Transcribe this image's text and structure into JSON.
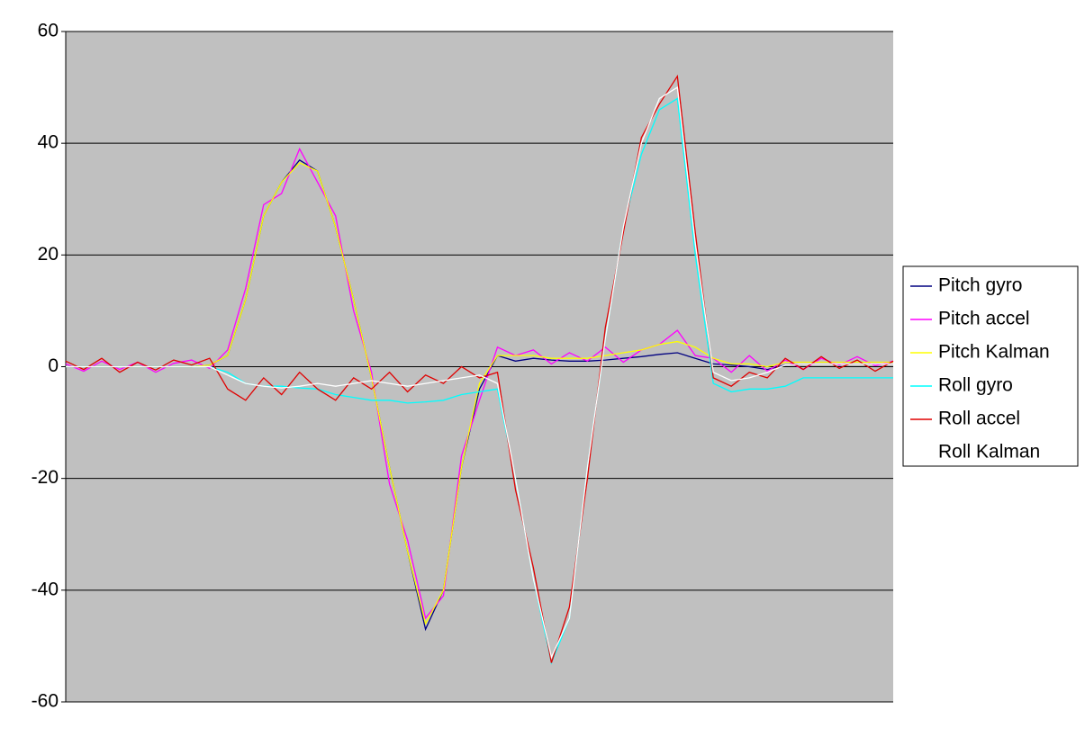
{
  "chart_data": {
    "type": "line",
    "ylim": [
      -60,
      60
    ],
    "yticks": [
      60,
      40,
      20,
      0,
      -20,
      -40,
      -60
    ],
    "grid": true,
    "legend": "right",
    "plot_background": "#c0c0c0",
    "series": [
      {
        "name": "Pitch gyro",
        "color": "#000080",
        "values": [
          0,
          0,
          0,
          0,
          0,
          0,
          0,
          0,
          0.3,
          2,
          12,
          27,
          33,
          37,
          35,
          25,
          12,
          -2,
          -18,
          -33,
          -47,
          -40,
          -18,
          -4,
          2,
          1,
          1.5,
          1.2,
          1,
          1,
          1.2,
          1.5,
          1.8,
          2.2,
          2.5,
          1.5,
          0.5,
          0.3,
          0,
          -0.5,
          0.3,
          0.5,
          0.5,
          0.5,
          0.5,
          0.5,
          0.5
        ]
      },
      {
        "name": "Pitch accel",
        "color": "#ff00ff",
        "values": [
          0.5,
          -0.8,
          1,
          -0.5,
          0.8,
          -1,
          0.6,
          1.2,
          -0.3,
          3,
          14,
          29,
          31,
          39,
          33,
          27,
          10,
          -1,
          -21,
          -31,
          -45,
          -41,
          -16,
          -6,
          3.5,
          2,
          3,
          0.5,
          2.5,
          1,
          3.5,
          0.8,
          3,
          4,
          6.5,
          2,
          1.5,
          -1,
          2,
          -0.8,
          1.2,
          -0.5,
          1.5,
          0.3,
          1.8,
          0.2,
          1
        ]
      },
      {
        "name": "Pitch Kalman",
        "color": "#ffff00",
        "values": [
          0,
          0,
          0,
          0,
          0,
          0,
          0,
          0,
          0.3,
          2,
          12,
          27,
          33,
          36.5,
          35,
          25,
          12,
          -2,
          -18,
          -33,
          -46,
          -40,
          -18,
          -3,
          2,
          2,
          2,
          1.5,
          1.5,
          1.5,
          2,
          2.5,
          3,
          4,
          4.5,
          3.5,
          1.5,
          0.5,
          0.5,
          0,
          0.8,
          0.8,
          0.8,
          0.8,
          0.8,
          0.8,
          0.8
        ]
      },
      {
        "name": "Roll gyro",
        "color": "#00ffff",
        "values": [
          0,
          0,
          0,
          0,
          0,
          0,
          0,
          0,
          0,
          -1,
          -3,
          -3.5,
          -3.5,
          -3.8,
          -4,
          -5,
          -5.5,
          -6,
          -6,
          -6.5,
          -6.3,
          -6,
          -5,
          -4.5,
          -4,
          -20,
          -38,
          -53,
          -45,
          -18,
          5,
          25,
          38,
          46,
          48,
          20,
          -3,
          -4.5,
          -4,
          -4,
          -3.5,
          -2,
          -2,
          -2,
          -2,
          -2,
          -2
        ]
      },
      {
        "name": "Roll accel",
        "color": "#e00000",
        "values": [
          1,
          -0.5,
          1.5,
          -1,
          0.8,
          -0.6,
          1.2,
          0.3,
          1.5,
          -4,
          -6,
          -2,
          -5,
          -1,
          -4,
          -6,
          -2,
          -4,
          -1,
          -4.5,
          -1.5,
          -3,
          0,
          -2,
          -1,
          -22,
          -36,
          -53,
          -43,
          -20,
          7,
          24,
          41,
          47,
          52,
          24,
          -2,
          -3.5,
          -1,
          -2,
          1.5,
          -0.5,
          1.8,
          -0.3,
          1.2,
          -0.8,
          1
        ]
      },
      {
        "name": "Roll Kalman",
        "color": "#ffffff",
        "values": [
          0,
          0,
          0,
          0,
          0,
          0,
          0,
          0,
          0,
          -1.5,
          -3,
          -3.5,
          -3.8,
          -3.5,
          -3,
          -3.5,
          -3,
          -2.5,
          -3,
          -3.5,
          -3,
          -2.5,
          -2,
          -1.5,
          -3,
          -20,
          -38,
          -52,
          -45,
          -18,
          5,
          25,
          40,
          48,
          50,
          22,
          -1,
          -2.5,
          -2,
          -1,
          0.3,
          0.5,
          0.5,
          0.5,
          0.5,
          0.5,
          0.5
        ]
      }
    ]
  }
}
